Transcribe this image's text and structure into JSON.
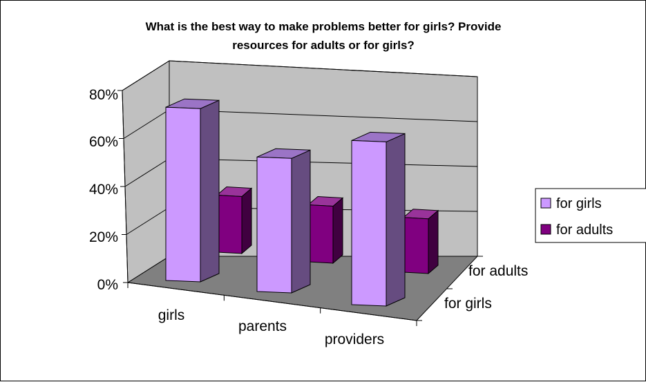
{
  "chart_data": {
    "type": "bar",
    "title_lines": [
      "What is the best way to make problems better for girls? Provide",
      "resources for adults or for girls?"
    ],
    "categories": [
      "girls",
      "parents",
      "providers"
    ],
    "depth_labels": [
      "for girls",
      "for adults"
    ],
    "series": [
      {
        "name": "for girls",
        "values": [
          0.76,
          0.59,
          0.72
        ],
        "color": "#cc99ff",
        "side": "#664c80",
        "top": "#9b74c6"
      },
      {
        "name": "for adults",
        "values": [
          0.25,
          0.25,
          0.24
        ],
        "color": "#800080",
        "side": "#400040",
        "top": "#99339a"
      }
    ],
    "y_ticks": [
      "0%",
      "20%",
      "40%",
      "60%",
      "80%"
    ],
    "ylim": [
      0,
      0.8
    ],
    "grid": true,
    "legend": "right",
    "colors": {
      "wall": "#c0c0c0",
      "floor": "#808080"
    }
  }
}
